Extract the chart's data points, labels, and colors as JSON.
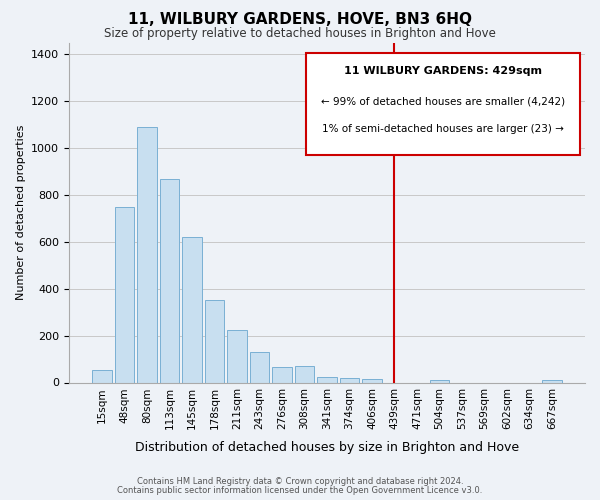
{
  "title": "11, WILBURY GARDENS, HOVE, BN3 6HQ",
  "subtitle": "Size of property relative to detached houses in Brighton and Hove",
  "xlabel": "Distribution of detached houses by size in Brighton and Hove",
  "ylabel": "Number of detached properties",
  "footer_line1": "Contains HM Land Registry data © Crown copyright and database right 2024.",
  "footer_line2": "Contains public sector information licensed under the Open Government Licence v3.0.",
  "bar_labels": [
    "15sqm",
    "48sqm",
    "80sqm",
    "113sqm",
    "145sqm",
    "178sqm",
    "211sqm",
    "243sqm",
    "276sqm",
    "308sqm",
    "341sqm",
    "374sqm",
    "406sqm",
    "439sqm",
    "471sqm",
    "504sqm",
    "537sqm",
    "569sqm",
    "602sqm",
    "634sqm",
    "667sqm"
  ],
  "bar_values": [
    55,
    750,
    1090,
    870,
    620,
    350,
    225,
    130,
    65,
    70,
    25,
    20,
    15,
    0,
    0,
    10,
    0,
    0,
    0,
    0,
    10
  ],
  "bar_color": "#c8dff0",
  "bar_edge_color": "#7ab0d4",
  "grid_color": "#c8c8c8",
  "vline_x_index": 13,
  "vline_color": "#cc0000",
  "annotation_title": "11 WILBURY GARDENS: 429sqm",
  "annotation_line1": "← 99% of detached houses are smaller (4,242)",
  "annotation_line2": "1% of semi-detached houses are larger (23) →",
  "annotation_box_edgecolor": "#cc0000",
  "annotation_box_facecolor": "#ffffff",
  "ylim": [
    0,
    1450
  ],
  "yticks": [
    0,
    200,
    400,
    600,
    800,
    1000,
    1200,
    1400
  ],
  "background_color": "#eef2f7",
  "plot_bg_color": "#eef2f7",
  "title_fontsize": 11,
  "subtitle_fontsize": 8.5,
  "ylabel_fontsize": 8,
  "xlabel_fontsize": 9
}
